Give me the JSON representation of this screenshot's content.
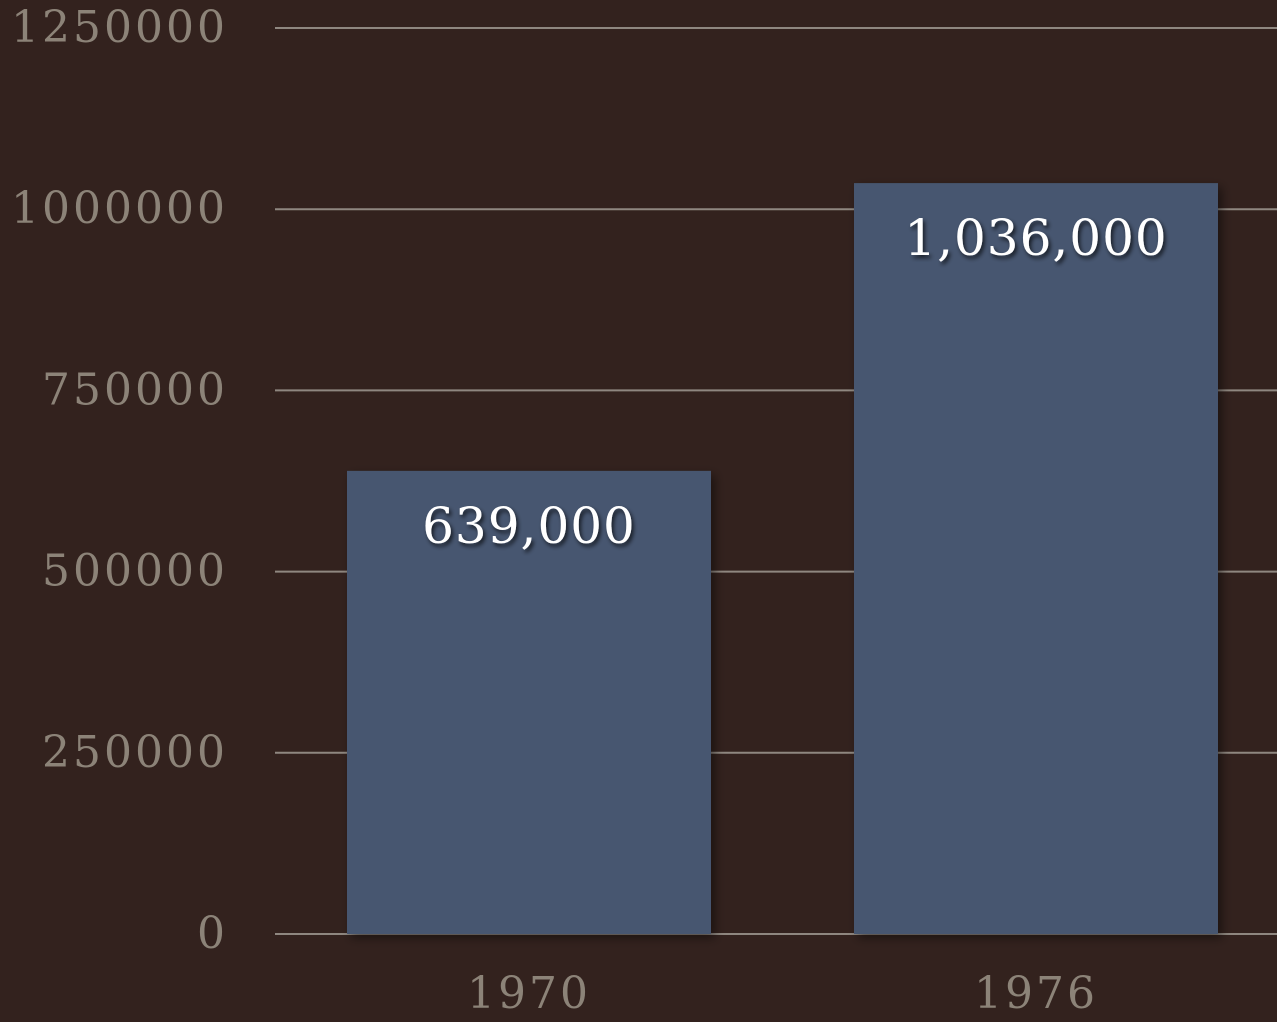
{
  "chart_data": {
    "type": "bar",
    "categories": [
      "1970",
      "1976"
    ],
    "values": [
      639000,
      1036000
    ],
    "data_labels": [
      "639,000",
      "1,036,000"
    ],
    "y_ticks": [
      0,
      250000,
      500000,
      750000,
      1000000,
      1250000
    ],
    "y_tick_labels": [
      "0",
      "250000",
      "500000",
      "750000",
      "1000000",
      "1250000"
    ],
    "ylim": [
      0,
      1250000
    ],
    "title": "",
    "xlabel": "",
    "ylabel": "",
    "grid": true,
    "legend": "none",
    "colors": {
      "background": "#33221e",
      "bar": "#46576f",
      "gridline": "#8f8780",
      "tick_label": "#8c8378",
      "data_label": "#ffffff"
    }
  }
}
